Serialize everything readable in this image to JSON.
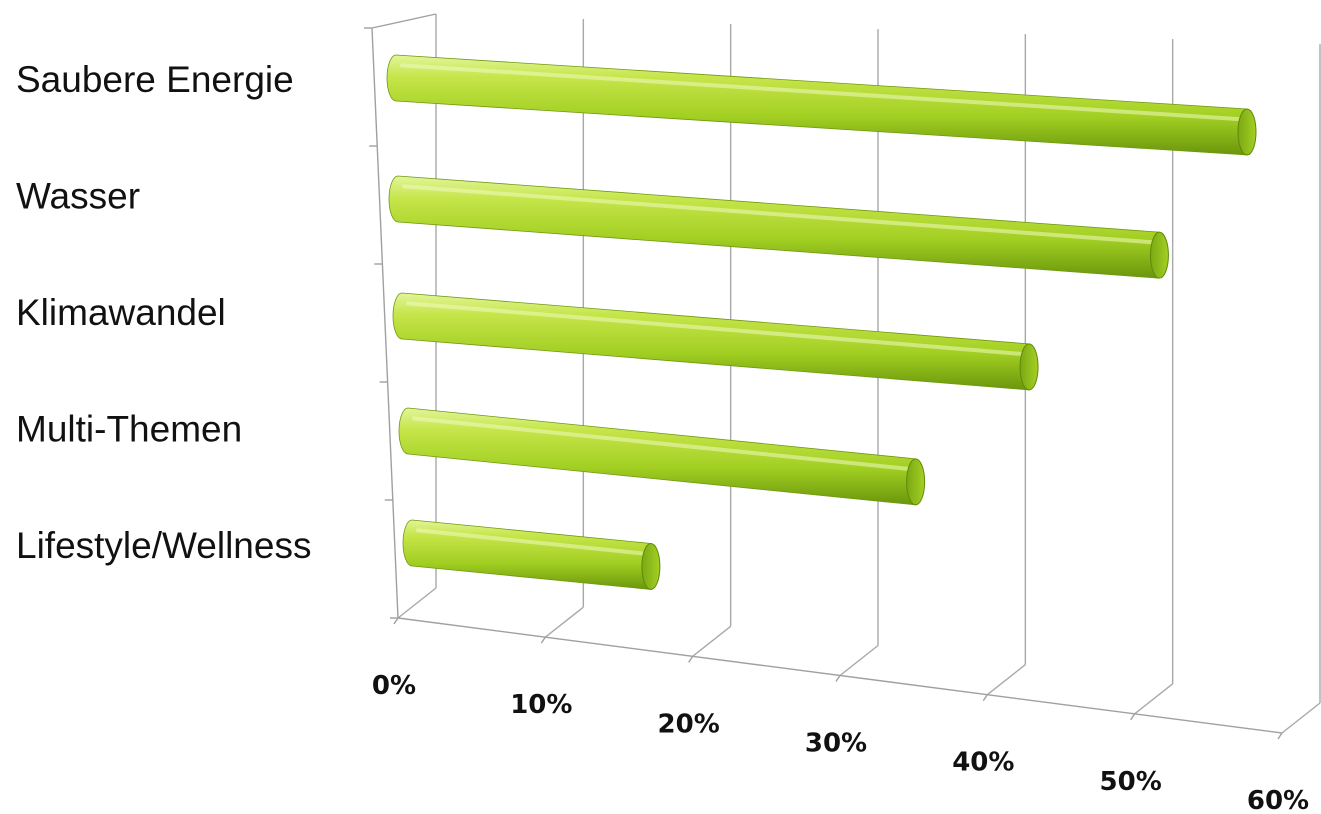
{
  "chart_data": {
    "type": "bar",
    "orientation": "horizontal",
    "style": "3d-cylinder",
    "categories": [
      "Saubere Energie",
      "Wasser",
      "Klimawandel",
      "Multi-Themen",
      "Lifestyle/Wellness"
    ],
    "values": [
      57,
      51,
      42,
      34,
      16
    ],
    "xlim": [
      0,
      60
    ],
    "x_ticks": [
      0,
      10,
      20,
      30,
      40,
      50,
      60
    ],
    "x_tick_labels": [
      "0%",
      "10%",
      "20%",
      "30%",
      "40%",
      "50%",
      "60%"
    ],
    "title": "",
    "xlabel": "",
    "ylabel": "",
    "grid": true,
    "legend": "none",
    "colors": {
      "bar_light": "#c8e64c",
      "bar_mid": "#9ccc1e",
      "bar_dark": "#5e8a0a",
      "bar_cap": "#88b816",
      "grid": "#a8a8a8"
    }
  }
}
